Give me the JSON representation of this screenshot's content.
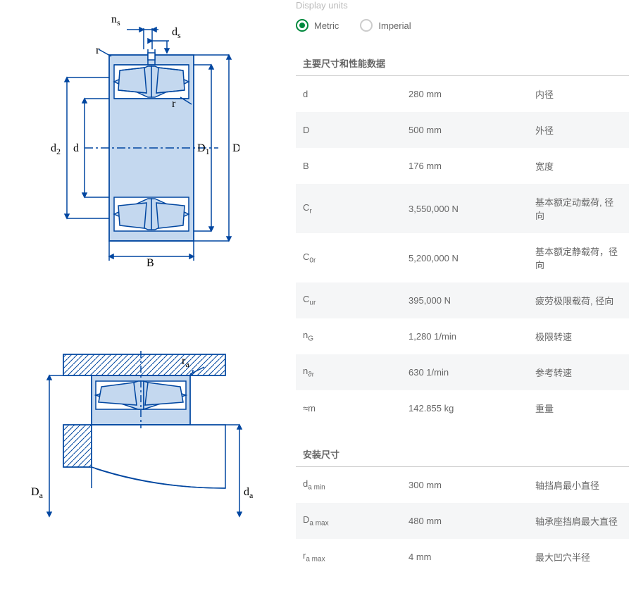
{
  "displayUnitsLabel": "Display units",
  "radios": {
    "metric": "Metric",
    "imperial": "Imperial"
  },
  "section1": {
    "title": "主要尺寸和性能数据",
    "rows": [
      {
        "sym": "d",
        "sub": "",
        "sub2": "",
        "val": "280 mm",
        "desc": "内径"
      },
      {
        "sym": "D",
        "sub": "",
        "sub2": "",
        "val": "500 mm",
        "desc": "外径"
      },
      {
        "sym": "B",
        "sub": "",
        "sub2": "",
        "val": "176 mm",
        "desc": "宽度"
      },
      {
        "sym": "C",
        "sub": "r",
        "sub2": "",
        "val": "3,550,000 N",
        "desc": "基本额定动载荷, 径向"
      },
      {
        "sym": "C",
        "sub": "0r",
        "sub2": "",
        "val": "5,200,000 N",
        "desc": "基本额定静载荷，径向"
      },
      {
        "sym": "C",
        "sub": "ur",
        "sub2": "",
        "val": "395,000 N",
        "desc": "疲劳极限载荷, 径向"
      },
      {
        "sym": "n",
        "sub": "G",
        "sub2": "",
        "val": "1,280 1/min",
        "desc": "极限转速"
      },
      {
        "sym": "n",
        "sub": "ϑ",
        "sub2": "r",
        "val": "630 1/min",
        "desc": "参考转速"
      },
      {
        "sym": "≈m",
        "sub": "",
        "sub2": "",
        "val": "142.855 kg",
        "desc": "重量"
      }
    ]
  },
  "section2": {
    "title": "安装尺寸",
    "rows": [
      {
        "sym": "d",
        "sub": "a min",
        "sub2": "",
        "val": "300 mm",
        "desc": "轴挡肩最小直径"
      },
      {
        "sym": "D",
        "sub": "a max",
        "sub2": "",
        "val": "480 mm",
        "desc": "轴承座挡肩最大直径"
      },
      {
        "sym": "r",
        "sub": "a max",
        "sub2": "",
        "val": "4 mm",
        "desc": "最大凹穴半径"
      }
    ]
  },
  "diagramLabels": {
    "ns": "n",
    "nssub": "s",
    "ds": "d",
    "dssub": "s",
    "r1": "r",
    "r2": "r",
    "d2": "d",
    "d2sub": "2",
    "d": "d",
    "D1": "D",
    "D1sub": "1",
    "D": "D",
    "B": "B",
    "ra": "r",
    "rasub": "a",
    "Da": "D",
    "Dasub": "a",
    "da": "d",
    "dasub": "a"
  },
  "colors": {
    "stroke": "#0046a0",
    "fill": "#c4d8ef"
  }
}
